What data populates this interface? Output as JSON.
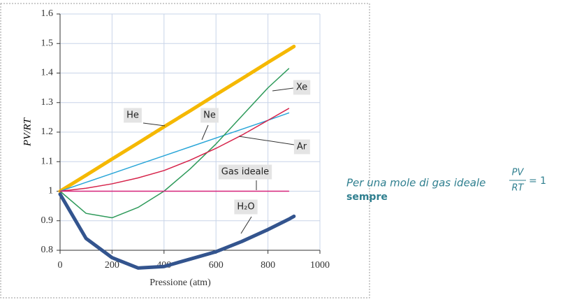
{
  "chart_data": {
    "type": "line",
    "xlabel": "Pressione (atm)",
    "ylabel": "PV/RT",
    "x": [
      0,
      100,
      200,
      300,
      400,
      500,
      600,
      700,
      800,
      880,
      900
    ],
    "xlim": [
      0,
      1000
    ],
    "xticks": [
      0,
      200,
      400,
      600,
      800,
      1000
    ],
    "ylim": [
      0.8,
      1.6
    ],
    "yticks": [
      0.8,
      0.9,
      1,
      1.1,
      1.2,
      1.3,
      1.4,
      1.5,
      1.6
    ],
    "grid": true,
    "series": [
      {
        "name": "He",
        "color": "#f5b800",
        "values": [
          1,
          1.054,
          1.109,
          1.163,
          1.218,
          1.272,
          1.327,
          1.381,
          1.436,
          1.479,
          1.49
        ]
      },
      {
        "name": "Ne",
        "color": "#2aa6d8",
        "values": [
          1,
          1.03,
          1.06,
          1.09,
          1.12,
          1.15,
          1.18,
          1.21,
          1.24,
          1.265,
          null
        ]
      },
      {
        "name": "Xe",
        "color": "#2e9a5a",
        "values": [
          1,
          0.925,
          0.91,
          0.945,
          1.0,
          1.075,
          1.16,
          1.255,
          1.35,
          1.415,
          null
        ]
      },
      {
        "name": "Ar",
        "color": "#d6234a",
        "values": [
          1,
          1.01,
          1.025,
          1.045,
          1.07,
          1.105,
          1.145,
          1.19,
          1.24,
          1.28,
          null
        ]
      },
      {
        "name": "Gas ideale",
        "color": "#d6237a",
        "values": [
          1,
          1,
          1,
          1,
          1,
          1,
          1,
          1,
          1,
          1,
          null
        ]
      },
      {
        "name": "H₂O",
        "color": "#33548e",
        "values": [
          0.99,
          0.84,
          0.775,
          0.74,
          0.745,
          0.77,
          0.795,
          0.83,
          0.87,
          0.905,
          0.915
        ]
      }
    ]
  },
  "note": {
    "text": "Per una mole di gas ideale",
    "numerator": "PV",
    "denominator": "RT",
    "equals": "= 1",
    "emphasis": "sempre"
  }
}
